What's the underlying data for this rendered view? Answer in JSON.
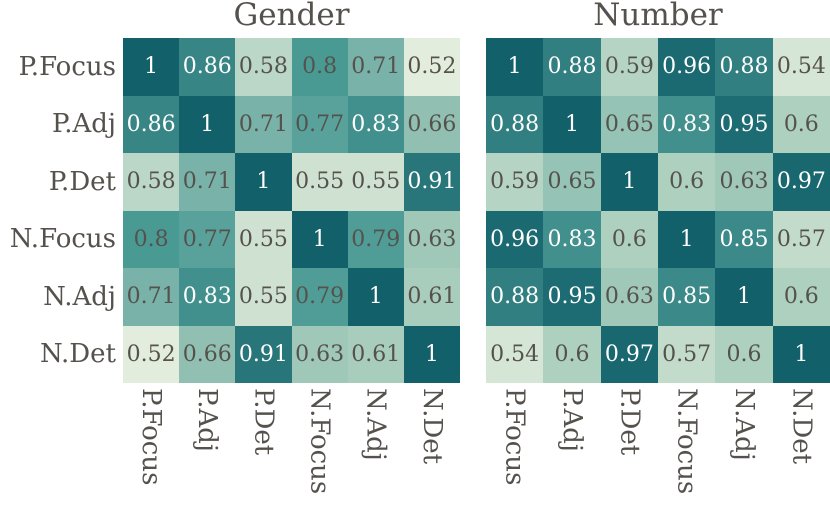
{
  "chart_data": [
    {
      "type": "heatmap",
      "title": "Gender",
      "rows": [
        "P.Focus",
        "P.Adj",
        "P.Det",
        "N.Focus",
        "N.Adj",
        "N.Det"
      ],
      "cols": [
        "P.Focus",
        "P.Adj",
        "P.Det",
        "N.Focus",
        "N.Adj",
        "N.Det"
      ],
      "values": [
        [
          1,
          0.86,
          0.58,
          0.8,
          0.71,
          0.52
        ],
        [
          0.86,
          1,
          0.71,
          0.77,
          0.83,
          0.66
        ],
        [
          0.58,
          0.71,
          1,
          0.55,
          0.55,
          0.91
        ],
        [
          0.8,
          0.77,
          0.55,
          1,
          0.79,
          0.63
        ],
        [
          0.71,
          0.83,
          0.55,
          0.79,
          1,
          0.61
        ],
        [
          0.52,
          0.66,
          0.91,
          0.63,
          0.61,
          1
        ]
      ],
      "show_row_labels": true,
      "value_range": [
        0.5,
        1.0
      ],
      "grid": false,
      "legend": "none"
    },
    {
      "type": "heatmap",
      "title": "Number",
      "rows": [
        "P.Focus",
        "P.Adj",
        "P.Det",
        "N.Focus",
        "N.Adj",
        "N.Det"
      ],
      "cols": [
        "P.Focus",
        "P.Adj",
        "P.Det",
        "N.Focus",
        "N.Adj",
        "N.Det"
      ],
      "values": [
        [
          1,
          0.88,
          0.59,
          0.96,
          0.88,
          0.54
        ],
        [
          0.88,
          1,
          0.65,
          0.83,
          0.95,
          0.6
        ],
        [
          0.59,
          0.65,
          1,
          0.6,
          0.63,
          0.97
        ],
        [
          0.96,
          0.83,
          0.6,
          1,
          0.85,
          0.57
        ],
        [
          0.88,
          0.95,
          0.63,
          0.85,
          1,
          0.6
        ],
        [
          0.54,
          0.6,
          0.97,
          0.57,
          0.6,
          1
        ]
      ],
      "show_row_labels": false,
      "value_range": [
        0.5,
        1.0
      ],
      "grid": false,
      "legend": "none"
    }
  ],
  "style": {
    "background": "#ffffff",
    "label_color": "#55524d",
    "annotation_dark_color": "#55524d",
    "annotation_light_color": "#ffffff",
    "white_text_threshold": 0.82,
    "colormap_stops": [
      {
        "v": 0.5,
        "c": "#f0f4e6"
      },
      {
        "v": 0.6,
        "c": "#aed0bf"
      },
      {
        "v": 0.7,
        "c": "#7db5aa"
      },
      {
        "v": 0.8,
        "c": "#4a9a94"
      },
      {
        "v": 0.9,
        "c": "#2b787b"
      },
      {
        "v": 1.0,
        "c": "#11606a"
      }
    ]
  }
}
